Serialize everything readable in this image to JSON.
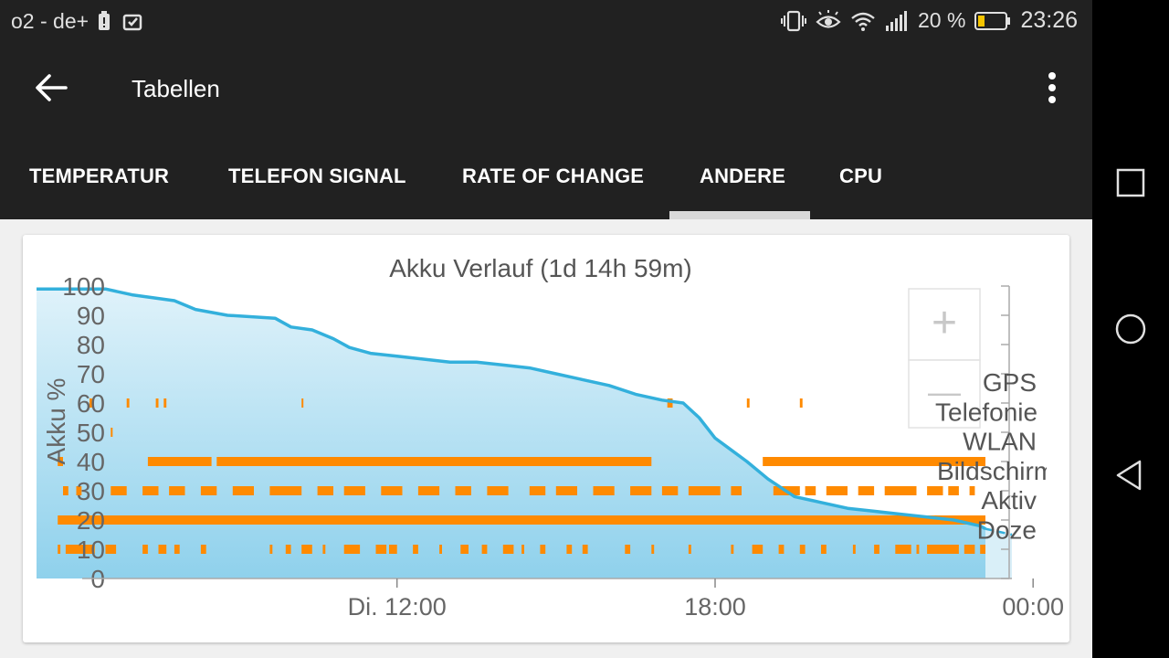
{
  "status_bar": {
    "carrier": "o2 - de+",
    "battery_percent": "20 %",
    "time": "23:26",
    "icons": [
      "battery-alert-icon",
      "clipboard-check-icon",
      "vibrate-icon",
      "eye-icon",
      "wifi-icon",
      "cellular-signal-icon",
      "battery-icon"
    ]
  },
  "app_bar": {
    "title": "Tabellen",
    "back_icon": "arrow-left-icon",
    "menu_icon": "more-vert-icon"
  },
  "tabs": [
    {
      "label": "TEMPERATUR",
      "active": false
    },
    {
      "label": "TELEFON SIGNAL",
      "active": false
    },
    {
      "label": "RATE OF CHANGE",
      "active": false
    },
    {
      "label": "ANDERE",
      "active": true
    },
    {
      "label": "CPU",
      "active": false
    }
  ],
  "zoom_controls": {
    "zoom_in": "+",
    "zoom_out": "—"
  },
  "chart_data": {
    "type": "area",
    "title": "Akku Verlauf (1d 14h 59m)",
    "ylabel": "Akku %",
    "ylim": [
      0,
      100
    ],
    "yticks": [
      0,
      10,
      20,
      30,
      40,
      50,
      60,
      70,
      80,
      90,
      100
    ],
    "x_tick_labels": [
      "Di. 12:00",
      "18:00",
      "00:00"
    ],
    "x_tick_hours": [
      12,
      18,
      24
    ],
    "xlim_hours": [
      5.2,
      23.6
    ],
    "grid": false,
    "line_color": "#33b0dc",
    "fill_color": "#a6dbf0",
    "bar_color": "#ff8a00",
    "battery": {
      "hours": [
        5.2,
        6.5,
        7.0,
        7.8,
        8.2,
        8.8,
        9.7,
        10.0,
        10.4,
        10.8,
        11.1,
        11.5,
        12.0,
        12.5,
        13.0,
        13.5,
        14.0,
        14.5,
        15.0,
        15.5,
        16.0,
        16.5,
        17.0,
        17.4,
        17.7,
        18.0,
        18.3,
        18.6,
        19.0,
        19.5,
        20.0,
        20.5,
        21.0,
        21.5,
        22.0,
        22.5,
        23.0,
        23.1
      ],
      "percent": [
        99,
        99,
        97,
        95,
        92,
        90,
        89,
        86,
        85,
        82,
        79,
        77,
        76,
        75,
        74,
        74,
        73,
        72,
        70,
        68,
        66,
        63,
        61,
        60,
        55,
        48,
        44,
        40,
        34,
        28,
        26,
        24,
        23,
        22,
        21,
        20,
        18,
        17
      ]
    },
    "battery_projection": {
      "hours": [
        23.1,
        23.6
      ],
      "percent": [
        17,
        15
      ]
    },
    "activity_labels": [
      "GPS",
      "Telefonie",
      "WLAN",
      "Bildschirm",
      "Aktiv",
      "Doze"
    ],
    "activity_rows": [
      {
        "name": "GPS",
        "level": 60,
        "intervals": [
          [
            6.2,
            6.25
          ],
          [
            6.9,
            6.95
          ],
          [
            7.45,
            7.5
          ],
          [
            7.6,
            7.65
          ],
          [
            10.2,
            10.22
          ],
          [
            17.1,
            17.2
          ],
          [
            18.6,
            18.65
          ],
          [
            19.6,
            19.65
          ]
        ]
      },
      {
        "name": "Telefonie",
        "level": 50,
        "intervals": [
          [
            6.6,
            6.62
          ]
        ]
      },
      {
        "name": "WLAN",
        "level": 40,
        "intervals": [
          [
            5.6,
            5.7
          ],
          [
            7.3,
            8.5
          ],
          [
            8.6,
            16.8
          ],
          [
            18.9,
            23.1
          ]
        ]
      },
      {
        "name": "Bildschirm",
        "level": 30,
        "intervals": [
          [
            5.7,
            5.8
          ],
          [
            5.95,
            6.05
          ],
          [
            6.6,
            6.9
          ],
          [
            7.2,
            7.5
          ],
          [
            7.7,
            8.0
          ],
          [
            8.3,
            8.6
          ],
          [
            8.9,
            9.3
          ],
          [
            9.6,
            10.2
          ],
          [
            10.5,
            10.8
          ],
          [
            11.0,
            11.4
          ],
          [
            11.7,
            12.1
          ],
          [
            12.4,
            12.8
          ],
          [
            13.1,
            13.4
          ],
          [
            13.7,
            14.1
          ],
          [
            14.5,
            14.8
          ],
          [
            15.0,
            15.4
          ],
          [
            15.7,
            16.1
          ],
          [
            16.4,
            16.8
          ],
          [
            17.0,
            17.3
          ],
          [
            17.5,
            18.1
          ],
          [
            18.3,
            18.5
          ],
          [
            19.1,
            19.6
          ],
          [
            19.7,
            19.9
          ],
          [
            20.1,
            20.5
          ],
          [
            20.7,
            21.0
          ],
          [
            21.2,
            21.8
          ],
          [
            22.0,
            22.3
          ],
          [
            22.4,
            22.6
          ],
          [
            22.8,
            22.9
          ]
        ]
      },
      {
        "name": "Aktiv",
        "level": 20,
        "intervals": [
          [
            5.6,
            23.1
          ]
        ]
      },
      {
        "name": "Doze",
        "level": 10,
        "intervals": [
          [
            5.6,
            5.65
          ],
          [
            5.75,
            6.3
          ],
          [
            6.5,
            6.7
          ],
          [
            7.2,
            7.3
          ],
          [
            7.5,
            7.65
          ],
          [
            7.8,
            7.9
          ],
          [
            8.3,
            8.4
          ],
          [
            9.6,
            9.65
          ],
          [
            9.9,
            10.0
          ],
          [
            10.2,
            10.4
          ],
          [
            10.6,
            10.65
          ],
          [
            11.0,
            11.3
          ],
          [
            11.6,
            11.8
          ],
          [
            11.85,
            12.0
          ],
          [
            12.3,
            12.4
          ],
          [
            12.8,
            12.85
          ],
          [
            13.2,
            13.35
          ],
          [
            13.6,
            13.7
          ],
          [
            14.0,
            14.2
          ],
          [
            14.35,
            14.4
          ],
          [
            14.7,
            14.8
          ],
          [
            15.2,
            15.3
          ],
          [
            15.5,
            15.6
          ],
          [
            16.3,
            16.4
          ],
          [
            16.8,
            16.85
          ],
          [
            17.5,
            17.55
          ],
          [
            18.3,
            18.35
          ],
          [
            18.7,
            18.9
          ],
          [
            19.2,
            19.3
          ],
          [
            19.6,
            19.7
          ],
          [
            20.0,
            20.1
          ],
          [
            20.6,
            20.65
          ],
          [
            21.0,
            21.1
          ],
          [
            21.4,
            21.7
          ],
          [
            21.8,
            21.85
          ],
          [
            22.0,
            22.6
          ],
          [
            22.7,
            22.9
          ],
          [
            23.0,
            23.1
          ]
        ]
      }
    ]
  },
  "nav_bar": {
    "icons": [
      "recent-apps-icon",
      "home-icon",
      "back-icon"
    ]
  }
}
